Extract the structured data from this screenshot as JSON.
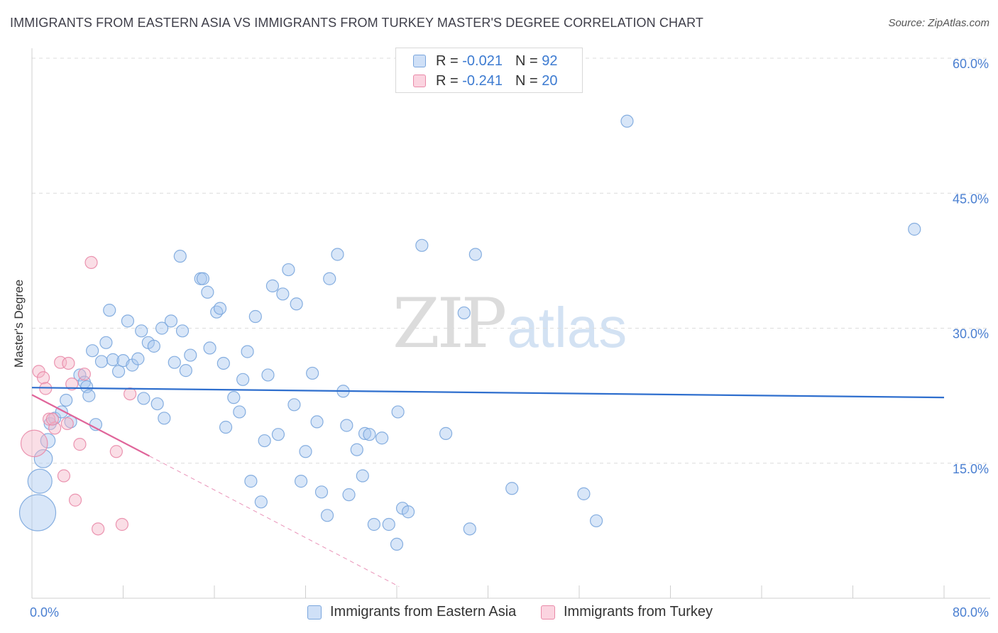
{
  "title": "IMMIGRANTS FROM EASTERN ASIA VS IMMIGRANTS FROM TURKEY MASTER'S DEGREE CORRELATION CHART",
  "source": "Source: ZipAtlas.com",
  "watermark": {
    "zip": "ZIP",
    "atlas": "atlas"
  },
  "legend": {
    "rows": [
      {
        "r_label": "R =",
        "r_value": "-0.021",
        "n_label": "N =",
        "n_value": "92"
      },
      {
        "r_label": "R =",
        "r_value": "-0.241",
        "n_label": "N =",
        "n_value": "20"
      }
    ]
  },
  "colors": {
    "blue_fill": "#a9c8ef",
    "blue_stroke": "#7aa6dd",
    "blue_line": "#2f6fce",
    "pink_fill": "#f5b5c8",
    "pink_stroke": "#e98aa8",
    "pink_line": "#e0659a",
    "tick_text": "#4a7fd1",
    "grid": "#dcdcdc"
  },
  "chart_data": {
    "type": "scatter",
    "title": "IMMIGRANTS FROM EASTERN ASIA VS IMMIGRANTS FROM TURKEY MASTER'S DEGREE CORRELATION CHART",
    "xlabel": "",
    "ylabel": "Master's Degree",
    "xlim": [
      0,
      80
    ],
    "ylim": [
      0,
      60
    ],
    "x_tick_labels": [
      "0.0%",
      "80.0%"
    ],
    "y_ticks": [
      15,
      30,
      45,
      60
    ],
    "y_tick_labels": [
      "15.0%",
      "30.0%",
      "45.0%",
      "60.0%"
    ],
    "grid": true,
    "legend_position": "top-center",
    "series": [
      {
        "name": "Immigrants from Eastern Asia",
        "color": "#a9c8ef",
        "points": [
          [
            0.5,
            9.5,
            3
          ],
          [
            0.7,
            13.0,
            2
          ],
          [
            1.0,
            15.5,
            1.5
          ],
          [
            1.4,
            17.5,
            1.2
          ],
          [
            1.6,
            19.4,
            1
          ],
          [
            2.0,
            20.0,
            1
          ],
          [
            2.6,
            20.7,
            1
          ],
          [
            3.0,
            22.0,
            1
          ],
          [
            3.4,
            19.6,
            1
          ],
          [
            4.2,
            24.8,
            1
          ],
          [
            4.6,
            24.0,
            1
          ],
          [
            4.8,
            23.5,
            1
          ],
          [
            5.0,
            22.5,
            1
          ],
          [
            5.3,
            27.5,
            1
          ],
          [
            5.6,
            19.3,
            1
          ],
          [
            6.1,
            26.3,
            1
          ],
          [
            6.5,
            28.4,
            1
          ],
          [
            6.8,
            32.0,
            1
          ],
          [
            7.1,
            26.5,
            1
          ],
          [
            7.6,
            25.2,
            1
          ],
          [
            8.0,
            26.4,
            1
          ],
          [
            8.4,
            30.8,
            1
          ],
          [
            8.8,
            25.9,
            1
          ],
          [
            9.3,
            26.6,
            1
          ],
          [
            9.6,
            29.7,
            1
          ],
          [
            9.8,
            22.2,
            1
          ],
          [
            10.2,
            28.4,
            1
          ],
          [
            10.7,
            28.0,
            1
          ],
          [
            11.0,
            21.6,
            1
          ],
          [
            11.4,
            30.0,
            1
          ],
          [
            11.6,
            20.0,
            1
          ],
          [
            12.2,
            30.8,
            1
          ],
          [
            12.5,
            26.2,
            1
          ],
          [
            13.0,
            38.0,
            1
          ],
          [
            13.2,
            29.7,
            1
          ],
          [
            13.5,
            25.3,
            1
          ],
          [
            13.9,
            27.0,
            1
          ],
          [
            14.8,
            35.5,
            1
          ],
          [
            15.0,
            35.5,
            1
          ],
          [
            15.4,
            34.0,
            1
          ],
          [
            15.6,
            27.8,
            1
          ],
          [
            16.2,
            31.8,
            1
          ],
          [
            16.5,
            32.2,
            1
          ],
          [
            16.8,
            26.1,
            1
          ],
          [
            17.0,
            19.0,
            1
          ],
          [
            17.7,
            22.3,
            1
          ],
          [
            18.2,
            20.7,
            1
          ],
          [
            18.5,
            24.3,
            1
          ],
          [
            18.9,
            27.4,
            1
          ],
          [
            19.2,
            13.0,
            1
          ],
          [
            19.6,
            31.3,
            1
          ],
          [
            20.1,
            10.7,
            1
          ],
          [
            20.4,
            17.5,
            1
          ],
          [
            20.7,
            24.8,
            1
          ],
          [
            21.1,
            34.7,
            1
          ],
          [
            21.6,
            18.2,
            1
          ],
          [
            22.0,
            33.8,
            1
          ],
          [
            22.5,
            36.5,
            1
          ],
          [
            23.0,
            21.5,
            1
          ],
          [
            23.2,
            32.7,
            1
          ],
          [
            23.6,
            13.0,
            1
          ],
          [
            24.0,
            16.3,
            1
          ],
          [
            24.6,
            25.0,
            1
          ],
          [
            25.0,
            19.6,
            1
          ],
          [
            25.4,
            11.8,
            1
          ],
          [
            25.9,
            9.2,
            1
          ],
          [
            26.1,
            35.5,
            1
          ],
          [
            26.8,
            38.2,
            1
          ],
          [
            27.3,
            23.0,
            1
          ],
          [
            27.8,
            11.5,
            1
          ],
          [
            27.6,
            19.2,
            1
          ],
          [
            28.5,
            16.5,
            1
          ],
          [
            29.0,
            13.6,
            1
          ],
          [
            29.2,
            18.3,
            1
          ],
          [
            29.6,
            18.2,
            1
          ],
          [
            30.0,
            8.2,
            1
          ],
          [
            30.7,
            17.8,
            1
          ],
          [
            31.3,
            8.2,
            1
          ],
          [
            32.0,
            6.0,
            1
          ],
          [
            32.1,
            20.7,
            1
          ],
          [
            32.5,
            10.0,
            1
          ],
          [
            33.0,
            9.6,
            1
          ],
          [
            34.2,
            39.2,
            1
          ],
          [
            36.3,
            18.3,
            1
          ],
          [
            37.9,
            31.7,
            1
          ],
          [
            38.4,
            7.7,
            1
          ],
          [
            38.9,
            38.2,
            1
          ],
          [
            42.1,
            12.2,
            1
          ],
          [
            48.4,
            11.6,
            1
          ],
          [
            49.5,
            8.6,
            1
          ],
          [
            52.2,
            53.0,
            1
          ],
          [
            77.4,
            41.0,
            1
          ]
        ],
        "trend": {
          "x": [
            0,
            80
          ],
          "y": [
            23.4,
            22.3
          ]
        }
      },
      {
        "name": "Immigrants from Turkey",
        "color": "#f5b5c8",
        "points": [
          [
            0.2,
            17.2,
            2.2
          ],
          [
            0.6,
            25.2,
            1
          ],
          [
            1.0,
            24.5,
            1
          ],
          [
            1.2,
            23.3,
            1
          ],
          [
            1.5,
            19.9,
            1
          ],
          [
            2.0,
            18.9,
            1
          ],
          [
            2.5,
            26.2,
            1
          ],
          [
            2.8,
            13.6,
            1
          ],
          [
            3.1,
            19.4,
            1
          ],
          [
            3.2,
            26.1,
            1
          ],
          [
            3.5,
            23.8,
            1
          ],
          [
            3.8,
            10.9,
            1
          ],
          [
            4.2,
            17.1,
            1
          ],
          [
            4.6,
            24.9,
            1
          ],
          [
            5.2,
            37.3,
            1
          ],
          [
            5.8,
            7.7,
            1
          ],
          [
            7.4,
            16.3,
            1
          ],
          [
            7.9,
            8.2,
            1
          ],
          [
            8.6,
            22.7,
            1
          ],
          [
            1.8,
            19.9,
            1
          ]
        ],
        "trend": {
          "x": [
            0,
            10.3
          ],
          "y": [
            22.6,
            15.8
          ]
        },
        "trend_extension": {
          "x": [
            10.3,
            32.2
          ],
          "y": [
            15.8,
            1.3
          ]
        }
      }
    ]
  },
  "bottom_legend": [
    {
      "label": "Immigrants from Eastern Asia"
    },
    {
      "label": "Immigrants from Turkey"
    }
  ]
}
